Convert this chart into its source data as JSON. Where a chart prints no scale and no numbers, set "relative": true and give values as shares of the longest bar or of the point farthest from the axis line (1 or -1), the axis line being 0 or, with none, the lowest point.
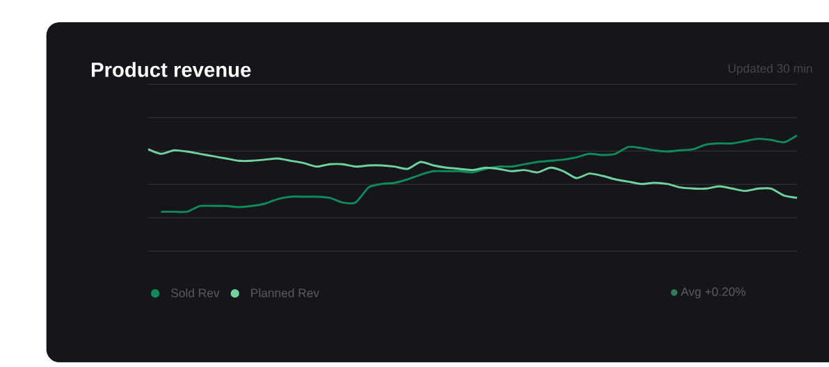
{
  "chart_data": {
    "type": "line",
    "relative": true,
    "title": "Product revenue",
    "subtitle": "Updated 30 min",
    "categories": [
      null,
      null,
      null,
      null,
      null,
      null,
      null,
      null,
      null,
      null,
      null,
      null,
      null,
      null,
      null,
      null,
      null,
      null,
      null,
      null,
      null,
      null,
      null,
      null,
      null,
      null,
      null,
      null,
      null,
      null,
      null,
      null,
      null,
      null,
      null,
      null,
      null,
      null,
      null,
      null,
      null,
      null,
      null,
      null,
      null,
      null,
      null,
      null,
      null,
      null,
      null
    ],
    "series": [
      {
        "name": "Sold Rev",
        "color": "#0f8a5a",
        "values": [
          null,
          0.34,
          0.34,
          0.34,
          0.39,
          0.39,
          0.39,
          0.38,
          0.39,
          0.41,
          0.45,
          0.47,
          0.47,
          0.47,
          0.46,
          0.42,
          0.42,
          0.55,
          0.58,
          0.59,
          0.62,
          0.66,
          0.69,
          0.69,
          0.69,
          0.68,
          0.71,
          0.73,
          0.73,
          0.75,
          0.77,
          0.78,
          0.79,
          0.81,
          0.84,
          0.83,
          0.84,
          0.9,
          0.89,
          0.87,
          0.86,
          0.87,
          0.88,
          0.92,
          0.93,
          0.93,
          0.95,
          0.97,
          0.96,
          0.94,
          1.0
        ]
      },
      {
        "name": "Planned Rev",
        "color": "#6fd3a0",
        "values": [
          0.88,
          0.84,
          0.87,
          0.86,
          0.84,
          0.82,
          0.8,
          0.78,
          0.78,
          0.79,
          0.8,
          0.78,
          0.76,
          0.73,
          0.75,
          0.75,
          0.73,
          0.74,
          0.74,
          0.73,
          0.71,
          0.77,
          0.74,
          0.72,
          0.71,
          0.7,
          0.72,
          0.71,
          0.69,
          0.7,
          0.68,
          0.72,
          0.69,
          0.63,
          0.67,
          0.65,
          0.62,
          0.6,
          0.58,
          0.59,
          0.58,
          0.55,
          0.54,
          0.54,
          0.56,
          0.54,
          0.52,
          0.54,
          0.54,
          0.48,
          0.46
        ]
      }
    ],
    "annotations": [
      "Avg +0.20%"
    ],
    "grid": true,
    "legend": "bottom left",
    "marker": "none",
    "line_style": "solid"
  }
}
